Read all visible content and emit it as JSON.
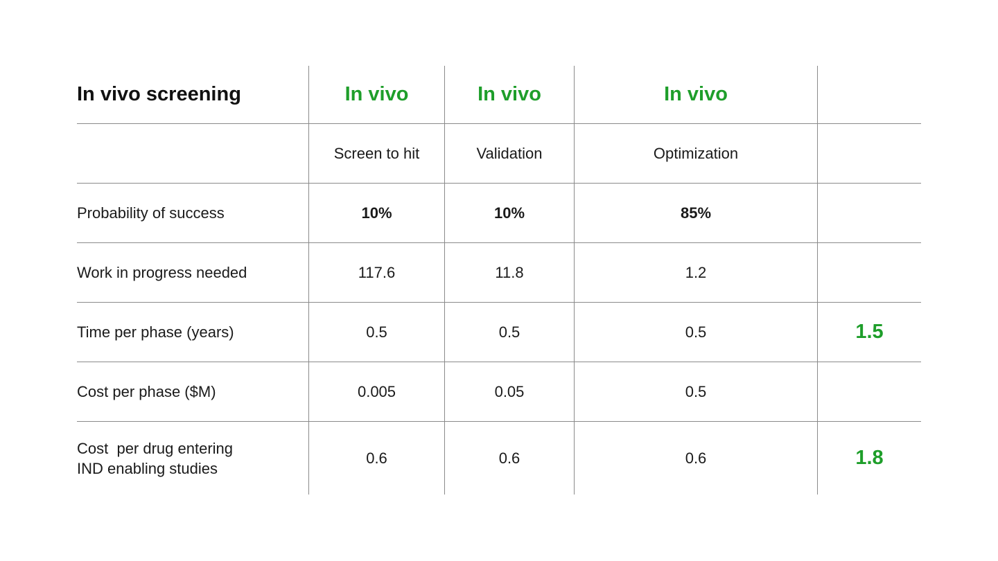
{
  "table": {
    "title": "In vivo screening",
    "stage_headers": [
      "In vivo",
      "In vivo",
      "In vivo"
    ],
    "phase_names": [
      "Screen to hit",
      "Validation",
      "Optimization"
    ],
    "rows": [
      {
        "label": "Probability of success",
        "values": [
          "10%",
          "10%",
          "85%"
        ],
        "total": ""
      },
      {
        "label": "Work in progress needed",
        "values": [
          "117.6",
          "11.8",
          "1.2"
        ],
        "total": ""
      },
      {
        "label": "Time per phase (years)",
        "values": [
          "0.5",
          "0.5",
          "0.5"
        ],
        "total": "1.5"
      },
      {
        "label": "Cost per phase ($M)",
        "values": [
          "0.005",
          "0.05",
          "0.5"
        ],
        "total": ""
      },
      {
        "label_line1": "Cost  per drug entering",
        "label_line2": "IND enabling studies",
        "values": [
          "0.6",
          "0.6",
          "0.6"
        ],
        "total": "1.8"
      }
    ]
  },
  "colors": {
    "accent_green": "#1e9e2a",
    "text": "#111111",
    "rule": "#8a8a8a"
  }
}
